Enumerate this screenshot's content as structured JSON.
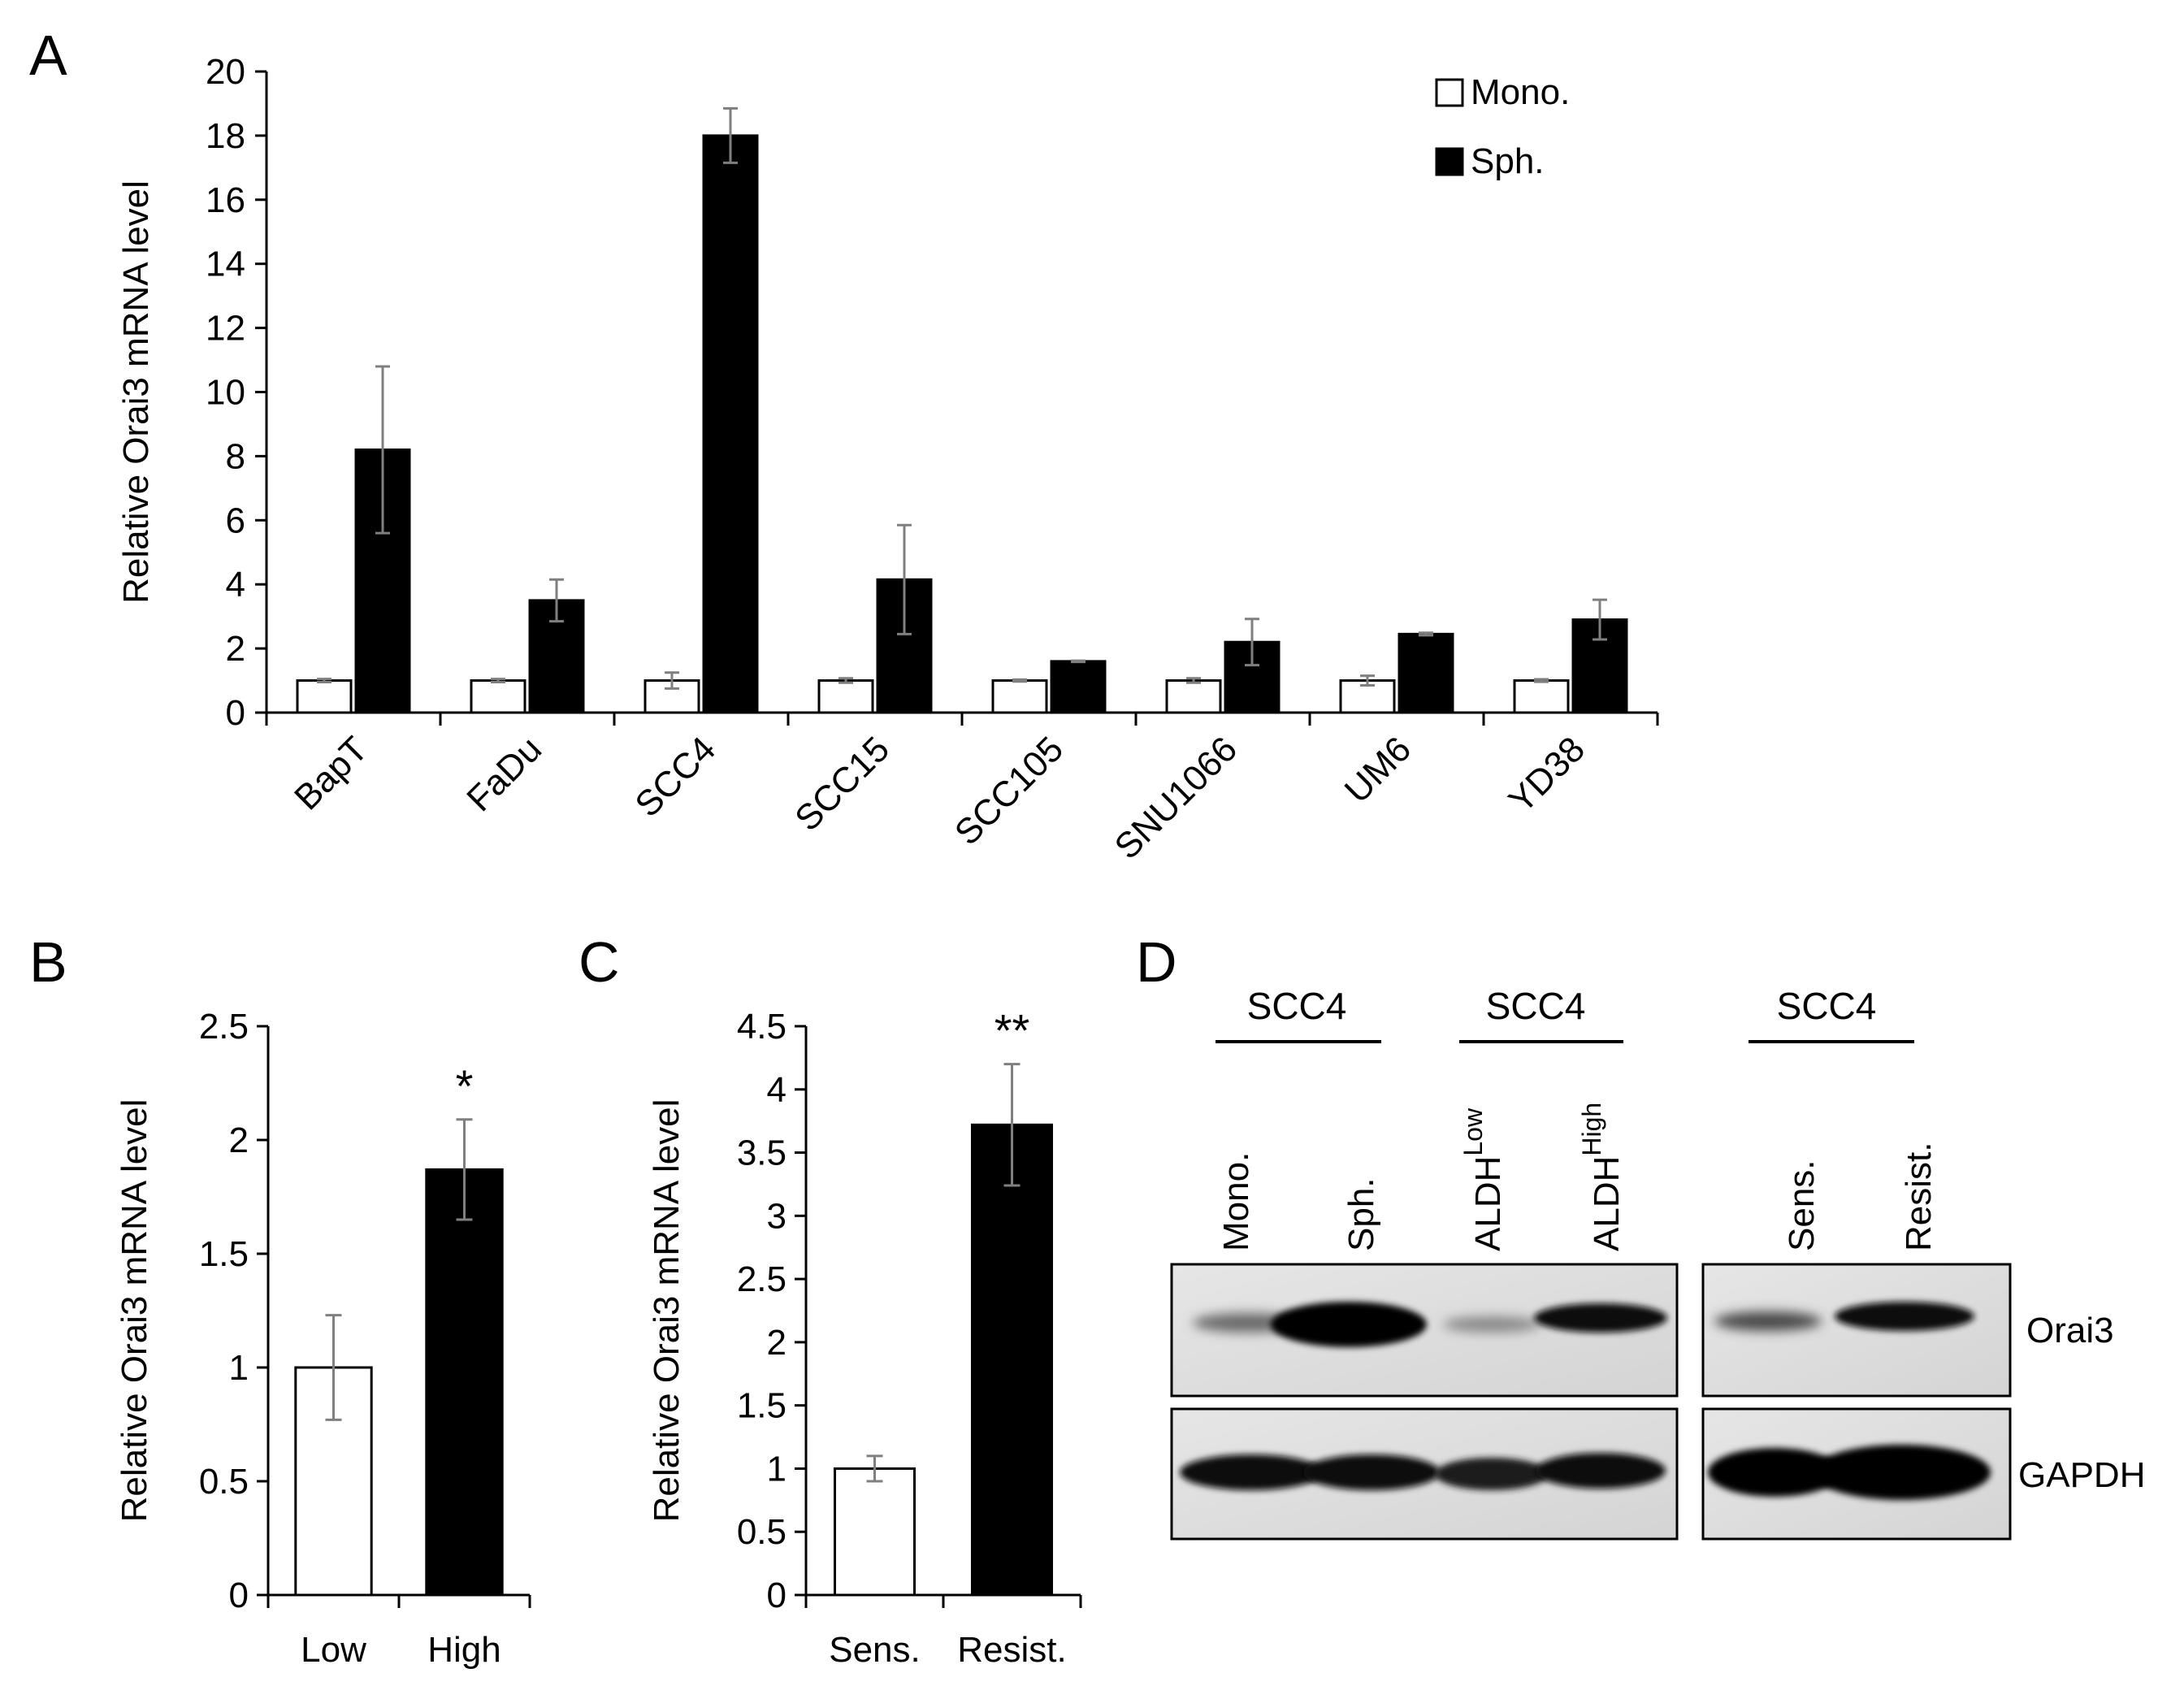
{
  "chart_data": [
    {
      "panel": "A",
      "type": "bar",
      "ylabel": "Relative Orai3 mRNA level",
      "ylim": [
        0,
        20
      ],
      "yticks": [
        0,
        2,
        4,
        6,
        8,
        10,
        12,
        14,
        16,
        18,
        20
      ],
      "categories": [
        "BapT",
        "FaDu",
        "SCC4",
        "SCC15",
        "SCC105",
        "SNU1066",
        "UM6",
        "YD38"
      ],
      "series": [
        {
          "name": "Mono.",
          "color": "#ffffff",
          "values": [
            1,
            1,
            1,
            1,
            1,
            1,
            1,
            1
          ],
          "errors": [
            0.05,
            0.05,
            0.25,
            0.07,
            0.03,
            0.07,
            0.15,
            0.04
          ]
        },
        {
          "name": "Sph.",
          "color": "#000000",
          "values": [
            8.2,
            3.5,
            18.0,
            4.15,
            1.6,
            2.2,
            2.45,
            2.9
          ],
          "errors": [
            2.6,
            0.65,
            0.85,
            1.7,
            0.02,
            0.72,
            0.04,
            0.62
          ]
        }
      ],
      "legend": "top-right"
    },
    {
      "panel": "B",
      "type": "bar",
      "ylabel": "Relative Orai3 mRNA level",
      "ylim": [
        0,
        2.5
      ],
      "yticks": [
        "0",
        "0.5",
        "1",
        "1.5",
        "2",
        "2.5"
      ],
      "categories": [
        "Low",
        "High"
      ],
      "values": [
        1.0,
        1.87
      ],
      "errors": [
        0.23,
        0.22
      ],
      "colors": [
        "#ffffff",
        "#000000"
      ],
      "annotations": [
        "",
        "*"
      ]
    },
    {
      "panel": "C",
      "type": "bar",
      "ylabel": "Relative Orai3 mRNA level",
      "ylim": [
        0,
        4.5
      ],
      "yticks": [
        "0",
        "0.5",
        "1",
        "1.5",
        "2",
        "2.5",
        "3",
        "3.5",
        "4",
        "4.5"
      ],
      "categories": [
        "Sens.",
        "Resist."
      ],
      "values": [
        1.0,
        3.72
      ],
      "errors": [
        0.1,
        0.48
      ],
      "colors": [
        "#ffffff",
        "#000000"
      ],
      "annotations": [
        "",
        "**"
      ]
    }
  ],
  "panel_letters": [
    "A",
    "B",
    "C",
    "D"
  ],
  "western_blot": {
    "groups": [
      {
        "title": "SCC4",
        "lanes": [
          "Mono.",
          "Sph."
        ]
      },
      {
        "title": "SCC4",
        "lanes": [
          "ALDH",
          "ALDH"
        ],
        "superscripts": [
          "Low",
          "High"
        ]
      },
      {
        "title": "SCC4",
        "lanes": [
          "Sens.",
          "Resist."
        ]
      }
    ],
    "rows": [
      "Orai3",
      "GAPDH"
    ]
  }
}
